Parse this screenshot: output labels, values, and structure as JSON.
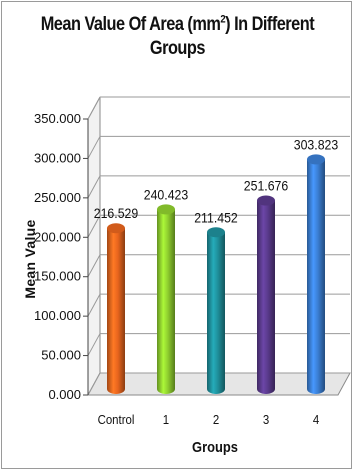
{
  "chart_data": {
    "type": "bar",
    "title_parts": [
      "Mean Value Of  Area (mm",
      "2",
      ") In Different Groups"
    ],
    "xlabel": "Groups",
    "ylabel": "Mean Value",
    "categories": [
      "Control",
      "1",
      "2",
      "3",
      "4"
    ],
    "values": [
      216.529,
      240.423,
      211.452,
      251.676,
      303.823
    ],
    "data_labels": [
      "216.529",
      "240.423",
      "211.452",
      "251.676",
      "303.823"
    ],
    "yticks": [
      0,
      50,
      100,
      150,
      200,
      250,
      300,
      350
    ],
    "ytick_labels": [
      "0.000",
      "50.000",
      "100.000",
      "150.000",
      "200.000",
      "250.000",
      "300.000",
      "350.000"
    ],
    "ylim": [
      0,
      350
    ],
    "grid": true,
    "legend": "none",
    "colors": [
      "#e8651e",
      "#8fcf2f",
      "#1f8f9b",
      "#5a3a8c",
      "#3b7fd4"
    ]
  }
}
